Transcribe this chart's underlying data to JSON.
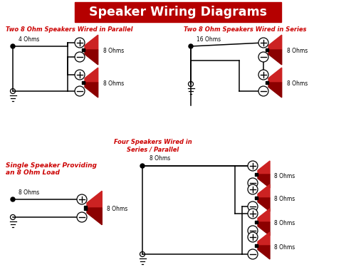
{
  "title": "Speaker Wiring Diagrams",
  "title_bg": "#b50000",
  "title_color": "#ffffff",
  "bg_color": "#ffffff",
  "red_color": "#cc0000",
  "dark_red": "#8b0000",
  "wire_color": "#000000",
  "figsize": [
    5.0,
    3.75
  ],
  "dpi": 100,
  "sections": {
    "parallel": {
      "title": "Two 8 Ohm Speakers Wired in Parallel",
      "ohm_label": "4 Ohms",
      "sp_labels": [
        "8 Ohms",
        "8 Ohms"
      ]
    },
    "series": {
      "title": "Two 8 Ohm Speakers Wired in Series",
      "ohm_label": "16 Ohms",
      "sp_labels": [
        "8 Ohms",
        "8 Ohms"
      ]
    },
    "single": {
      "title": "Single Speaker Providing\nan 8 Ohm Load",
      "ohm_label": "8 Ohms",
      "sp_labels": [
        "8 Ohms"
      ]
    },
    "four": {
      "title": "Four Speakers Wired in\nSeries / Parallel",
      "ohm_label": "8 Ohms",
      "sp_labels": [
        "8 Ohms",
        "8 Ohms",
        "8 Ohms",
        "8 Ohms"
      ]
    }
  }
}
